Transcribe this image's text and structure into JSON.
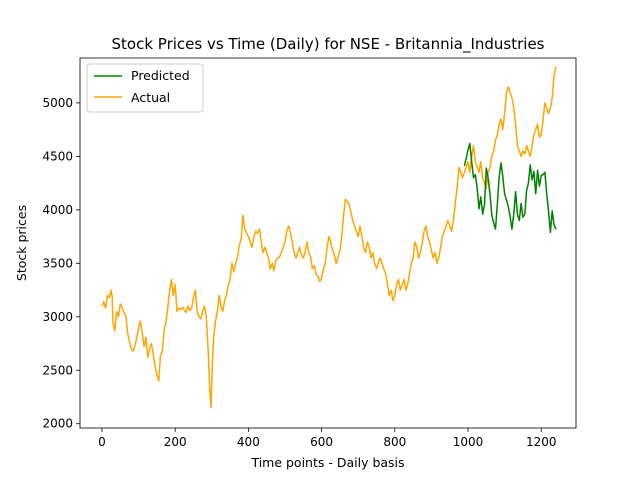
{
  "chart_data": {
    "type": "line",
    "title": "Stock Prices vs Time (Daily) for NSE - Britannia_Industries",
    "xlabel": "Time points - Daily basis",
    "ylabel": "Stock prices",
    "xlim": [
      -60,
      1295
    ],
    "ylim": [
      1960,
      5420
    ],
    "xticks": [
      0,
      200,
      400,
      600,
      800,
      1000,
      1200
    ],
    "yticks": [
      2000,
      2500,
      3000,
      3500,
      4000,
      4500,
      5000
    ],
    "grid": false,
    "legend": {
      "position": "top-left",
      "entries": [
        "Predicted",
        "Actual"
      ]
    },
    "series": [
      {
        "name": "Predicted",
        "color": "#008000",
        "points": [
          [
            990,
            4410
          ],
          [
            1000,
            4560
          ],
          [
            1005,
            4620
          ],
          [
            1010,
            4450
          ],
          [
            1015,
            4300
          ],
          [
            1020,
            4330
          ],
          [
            1025,
            4200
          ],
          [
            1030,
            4010
          ],
          [
            1035,
            4120
          ],
          [
            1040,
            3960
          ],
          [
            1045,
            4050
          ],
          [
            1050,
            4390
          ],
          [
            1055,
            4300
          ],
          [
            1060,
            4150
          ],
          [
            1065,
            3950
          ],
          [
            1070,
            3880
          ],
          [
            1075,
            3820
          ],
          [
            1080,
            4050
          ],
          [
            1085,
            4300
          ],
          [
            1090,
            4440
          ],
          [
            1095,
            4310
          ],
          [
            1100,
            4150
          ],
          [
            1105,
            4090
          ],
          [
            1110,
            4030
          ],
          [
            1115,
            3940
          ],
          [
            1120,
            3820
          ],
          [
            1125,
            3960
          ],
          [
            1130,
            4170
          ],
          [
            1135,
            3960
          ],
          [
            1140,
            3900
          ],
          [
            1145,
            4060
          ],
          [
            1150,
            3930
          ],
          [
            1155,
            3960
          ],
          [
            1160,
            4180
          ],
          [
            1165,
            4250
          ],
          [
            1170,
            4420
          ],
          [
            1175,
            4280
          ],
          [
            1180,
            4360
          ],
          [
            1185,
            4150
          ],
          [
            1190,
            4370
          ],
          [
            1195,
            4220
          ],
          [
            1200,
            4320
          ],
          [
            1205,
            4330
          ],
          [
            1210,
            4350
          ],
          [
            1215,
            4150
          ],
          [
            1220,
            3990
          ],
          [
            1225,
            3790
          ],
          [
            1230,
            3990
          ],
          [
            1235,
            3860
          ],
          [
            1240,
            3820
          ]
        ]
      },
      {
        "name": "Actual",
        "color": "#ffa500",
        "points": [
          [
            0,
            3100
          ],
          [
            5,
            3140
          ],
          [
            10,
            3080
          ],
          [
            15,
            3200
          ],
          [
            20,
            3180
          ],
          [
            25,
            3250
          ],
          [
            28,
            3180
          ],
          [
            30,
            2950
          ],
          [
            35,
            2870
          ],
          [
            40,
            3050
          ],
          [
            45,
            3000
          ],
          [
            50,
            3120
          ],
          [
            55,
            3090
          ],
          [
            60,
            3040
          ],
          [
            65,
            3010
          ],
          [
            70,
            2850
          ],
          [
            75,
            2770
          ],
          [
            80,
            2700
          ],
          [
            85,
            2680
          ],
          [
            90,
            2730
          ],
          [
            95,
            2800
          ],
          [
            100,
            2900
          ],
          [
            105,
            2960
          ],
          [
            110,
            2850
          ],
          [
            115,
            2720
          ],
          [
            120,
            2810
          ],
          [
            125,
            2620
          ],
          [
            130,
            2700
          ],
          [
            135,
            2750
          ],
          [
            140,
            2650
          ],
          [
            145,
            2540
          ],
          [
            150,
            2460
          ],
          [
            155,
            2400
          ],
          [
            160,
            2640
          ],
          [
            165,
            2680
          ],
          [
            170,
            2880
          ],
          [
            175,
            2950
          ],
          [
            180,
            3100
          ],
          [
            185,
            3250
          ],
          [
            190,
            3350
          ],
          [
            195,
            3200
          ],
          [
            200,
            3300
          ],
          [
            205,
            3050
          ],
          [
            210,
            3080
          ],
          [
            215,
            3070
          ],
          [
            220,
            3090
          ],
          [
            225,
            3060
          ],
          [
            230,
            3040
          ],
          [
            235,
            3100
          ],
          [
            240,
            3060
          ],
          [
            245,
            3080
          ],
          [
            250,
            3180
          ],
          [
            255,
            3250
          ],
          [
            260,
            3050
          ],
          [
            265,
            3000
          ],
          [
            270,
            2980
          ],
          [
            275,
            3050
          ],
          [
            280,
            3100
          ],
          [
            285,
            3000
          ],
          [
            290,
            2700
          ],
          [
            295,
            2300
          ],
          [
            298,
            2150
          ],
          [
            302,
            2600
          ],
          [
            305,
            2800
          ],
          [
            310,
            2950
          ],
          [
            315,
            3050
          ],
          [
            320,
            3200
          ],
          [
            325,
            3100
          ],
          [
            330,
            3050
          ],
          [
            335,
            3150
          ],
          [
            340,
            3200
          ],
          [
            345,
            3300
          ],
          [
            350,
            3350
          ],
          [
            355,
            3500
          ],
          [
            360,
            3420
          ],
          [
            365,
            3500
          ],
          [
            370,
            3550
          ],
          [
            375,
            3660
          ],
          [
            380,
            3720
          ],
          [
            385,
            3950
          ],
          [
            390,
            3820
          ],
          [
            395,
            3780
          ],
          [
            400,
            3750
          ],
          [
            405,
            3700
          ],
          [
            410,
            3650
          ],
          [
            415,
            3750
          ],
          [
            420,
            3800
          ],
          [
            425,
            3780
          ],
          [
            430,
            3820
          ],
          [
            435,
            3700
          ],
          [
            440,
            3600
          ],
          [
            445,
            3650
          ],
          [
            450,
            3600
          ],
          [
            455,
            3550
          ],
          [
            460,
            3450
          ],
          [
            465,
            3500
          ],
          [
            470,
            3430
          ],
          [
            475,
            3530
          ],
          [
            480,
            3550
          ],
          [
            485,
            3560
          ],
          [
            490,
            3600
          ],
          [
            495,
            3650
          ],
          [
            500,
            3700
          ],
          [
            505,
            3800
          ],
          [
            510,
            3850
          ],
          [
            515,
            3780
          ],
          [
            520,
            3700
          ],
          [
            525,
            3600
          ],
          [
            530,
            3550
          ],
          [
            535,
            3600
          ],
          [
            540,
            3650
          ],
          [
            545,
            3580
          ],
          [
            550,
            3550
          ],
          [
            555,
            3600
          ],
          [
            560,
            3700
          ],
          [
            565,
            3600
          ],
          [
            570,
            3560
          ],
          [
            575,
            3450
          ],
          [
            580,
            3480
          ],
          [
            585,
            3400
          ],
          [
            590,
            3380
          ],
          [
            595,
            3330
          ],
          [
            600,
            3360
          ],
          [
            605,
            3450
          ],
          [
            610,
            3500
          ],
          [
            615,
            3650
          ],
          [
            620,
            3750
          ],
          [
            625,
            3700
          ],
          [
            630,
            3620
          ],
          [
            635,
            3580
          ],
          [
            640,
            3500
          ],
          [
            645,
            3560
          ],
          [
            650,
            3620
          ],
          [
            655,
            3750
          ],
          [
            660,
            3950
          ],
          [
            665,
            4100
          ],
          [
            670,
            4080
          ],
          [
            675,
            4050
          ],
          [
            680,
            3980
          ],
          [
            685,
            3900
          ],
          [
            690,
            3850
          ],
          [
            695,
            3800
          ],
          [
            700,
            3750
          ],
          [
            705,
            3850
          ],
          [
            710,
            3750
          ],
          [
            715,
            3650
          ],
          [
            720,
            3600
          ],
          [
            725,
            3700
          ],
          [
            730,
            3650
          ],
          [
            735,
            3550
          ],
          [
            740,
            3600
          ],
          [
            745,
            3500
          ],
          [
            750,
            3450
          ],
          [
            755,
            3500
          ],
          [
            760,
            3550
          ],
          [
            765,
            3500
          ],
          [
            770,
            3450
          ],
          [
            775,
            3400
          ],
          [
            780,
            3300
          ],
          [
            785,
            3200
          ],
          [
            790,
            3250
          ],
          [
            795,
            3150
          ],
          [
            800,
            3200
          ],
          [
            805,
            3300
          ],
          [
            810,
            3350
          ],
          [
            815,
            3250
          ],
          [
            820,
            3300
          ],
          [
            825,
            3350
          ],
          [
            830,
            3250
          ],
          [
            835,
            3300
          ],
          [
            840,
            3400
          ],
          [
            845,
            3500
          ],
          [
            850,
            3550
          ],
          [
            855,
            3700
          ],
          [
            860,
            3650
          ],
          [
            865,
            3550
          ],
          [
            870,
            3600
          ],
          [
            875,
            3700
          ],
          [
            880,
            3800
          ],
          [
            885,
            3850
          ],
          [
            890,
            3750
          ],
          [
            895,
            3700
          ],
          [
            900,
            3620
          ],
          [
            905,
            3550
          ],
          [
            910,
            3600
          ],
          [
            915,
            3500
          ],
          [
            920,
            3550
          ],
          [
            925,
            3650
          ],
          [
            930,
            3750
          ],
          [
            935,
            3800
          ],
          [
            940,
            3850
          ],
          [
            945,
            3900
          ],
          [
            950,
            3850
          ],
          [
            955,
            3800
          ],
          [
            960,
            3900
          ],
          [
            965,
            4050
          ],
          [
            970,
            4200
          ],
          [
            975,
            4400
          ],
          [
            980,
            4350
          ],
          [
            985,
            4300
          ],
          [
            990,
            4350
          ],
          [
            995,
            4400
          ],
          [
            1000,
            4450
          ],
          [
            1005,
            4350
          ],
          [
            1010,
            4500
          ],
          [
            1015,
            4600
          ],
          [
            1020,
            4450
          ],
          [
            1025,
            4400
          ],
          [
            1030,
            4350
          ],
          [
            1035,
            4450
          ],
          [
            1040,
            4300
          ],
          [
            1045,
            4250
          ],
          [
            1050,
            4200
          ],
          [
            1055,
            4350
          ],
          [
            1060,
            4400
          ],
          [
            1065,
            4500
          ],
          [
            1070,
            4550
          ],
          [
            1075,
            4650
          ],
          [
            1080,
            4700
          ],
          [
            1085,
            4800
          ],
          [
            1090,
            4850
          ],
          [
            1095,
            4750
          ],
          [
            1100,
            4900
          ],
          [
            1105,
            5100
          ],
          [
            1110,
            5150
          ],
          [
            1115,
            5100
          ],
          [
            1120,
            5050
          ],
          [
            1125,
            4950
          ],
          [
            1130,
            4800
          ],
          [
            1135,
            4600
          ],
          [
            1140,
            4550
          ],
          [
            1145,
            4500
          ],
          [
            1150,
            4550
          ],
          [
            1155,
            4520
          ],
          [
            1160,
            4600
          ],
          [
            1165,
            4550
          ],
          [
            1170,
            4500
          ],
          [
            1175,
            4600
          ],
          [
            1180,
            4700
          ],
          [
            1185,
            4750
          ],
          [
            1190,
            4800
          ],
          [
            1195,
            4680
          ],
          [
            1200,
            4700
          ],
          [
            1205,
            4850
          ],
          [
            1210,
            5000
          ],
          [
            1215,
            4950
          ],
          [
            1220,
            4900
          ],
          [
            1225,
            4950
          ],
          [
            1230,
            5050
          ],
          [
            1235,
            5250
          ],
          [
            1240,
            5340
          ]
        ]
      }
    ]
  }
}
